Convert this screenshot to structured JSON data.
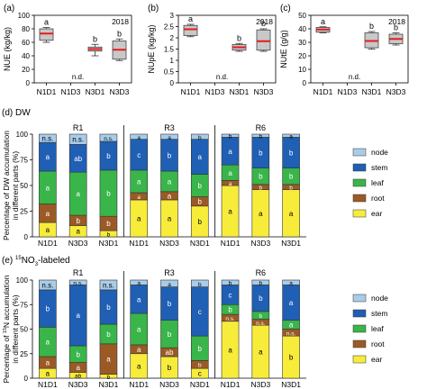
{
  "top_panels": [
    {
      "label": "(a)",
      "year": "2018",
      "ylabel": "NUE (kg/kg)",
      "yticks": [
        "0",
        "20",
        "40",
        "60",
        "80",
        "100"
      ],
      "ylim": [
        0,
        100
      ],
      "categories": [
        "N1D1",
        "N1D3",
        "N3D1",
        "N3D3"
      ],
      "nd_text": "n.d.",
      "boxes": [
        {
          "cat": "N1D1",
          "min": 60,
          "q1": 63,
          "median": 73,
          "q3": 80,
          "max": 82,
          "letter": "a"
        },
        {
          "cat": "N3D1",
          "min": 40,
          "q1": 47,
          "median": 50,
          "q3": 53,
          "max": 57,
          "letter": "b"
        },
        {
          "cat": "N3D3",
          "min": 33,
          "q1": 35,
          "median": 49,
          "q3": 62,
          "max": 65,
          "letter": "b"
        }
      ]
    },
    {
      "label": "(b)",
      "year": "2018",
      "ylabel": "NUpE (kg/kg)",
      "yticks": [
        "0",
        "0.5",
        "1",
        "1.5",
        "2",
        "2.5",
        "3"
      ],
      "ylim": [
        0,
        3
      ],
      "categories": [
        "N1D1",
        "N1D3",
        "N3D1",
        "N3D3"
      ],
      "nd_text": "n.d.",
      "boxes": [
        {
          "cat": "N1D1",
          "min": 2.05,
          "q1": 2.1,
          "median": 2.38,
          "q3": 2.55,
          "max": 2.6,
          "letter": "a"
        },
        {
          "cat": "N3D1",
          "min": 1.4,
          "q1": 1.45,
          "median": 1.58,
          "q3": 1.7,
          "max": 1.75,
          "letter": "b"
        },
        {
          "cat": "N3D3",
          "min": 1.4,
          "q1": 1.45,
          "median": 1.85,
          "q3": 2.35,
          "max": 2.4,
          "letter": "b"
        }
      ]
    },
    {
      "label": "(c)",
      "year": "2018",
      "ylabel": "NUtE (g/g)",
      "yticks": [
        "0",
        "10",
        "20",
        "30",
        "40",
        "50"
      ],
      "ylim": [
        0,
        50
      ],
      "categories": [
        "N1D1",
        "N1D3",
        "N3D1",
        "N3D3"
      ],
      "nd_text": "n.d.",
      "boxes": [
        {
          "cat": "N1D1",
          "min": 37,
          "q1": 37.5,
          "median": 39.5,
          "q3": 41,
          "max": 41.5,
          "letter": "a"
        },
        {
          "cat": "N3D1",
          "min": 25,
          "q1": 26,
          "median": 31,
          "q3": 37,
          "max": 38,
          "letter": "b"
        },
        {
          "cat": "N3D3",
          "min": 28,
          "q1": 29,
          "median": 32.5,
          "q3": 36,
          "max": 37,
          "letter": "b"
        }
      ]
    }
  ],
  "stack_order": [
    "ear",
    "root",
    "leaf",
    "stem",
    "node"
  ],
  "colors": {
    "ear": "#f7ec3a",
    "root": "#9b5a25",
    "leaf": "#39b54a",
    "stem": "#1f5fb4",
    "node": "#a9cce8"
  },
  "legend": [
    "node",
    "stem",
    "leaf",
    "root",
    "ear"
  ],
  "bar_panels": [
    {
      "label": "(d) DW",
      "ylabel": "Percentage of DW accumulation in different parts (%)",
      "ylabel_lines": [
        "Percentage of DW accumulation",
        "in different parts (%)"
      ],
      "yticks": [
        "0",
        "25",
        "50",
        "75",
        "100"
      ],
      "stages": [
        {
          "name": "R1",
          "bars": [
            {
              "cat": "N1D1",
              "values": {
                "ear": 14,
                "root": 18,
                "leaf": 32,
                "stem": 28,
                "node": 8
              },
              "letters": {
                "ear": "a",
                "root": "a",
                "leaf": "a",
                "stem": "a",
                "node": "n.s."
              }
            },
            {
              "cat": "N3D3",
              "values": {
                "ear": 11,
                "root": 10,
                "leaf": 42,
                "stem": 27,
                "node": 10
              },
              "letters": {
                "ear": "a",
                "root": "b",
                "leaf": "a",
                "stem": "ab",
                "node": "n.s."
              }
            },
            {
              "cat": "N3D1",
              "values": {
                "ear": 6,
                "root": 14,
                "leaf": 45,
                "stem": 28,
                "node": 7
              },
              "letters": {
                "ear": "b",
                "root": "b",
                "leaf": "b",
                "stem": "b",
                "node": "n.s."
              }
            }
          ]
        },
        {
          "name": "R3",
          "bars": [
            {
              "cat": "N1D1",
              "values": {
                "ear": 36,
                "root": 7,
                "leaf": 22,
                "stem": 30,
                "node": 5
              },
              "letters": {
                "ear": "a",
                "root": "a",
                "leaf": "a",
                "stem": "c",
                "node": "a"
              }
            },
            {
              "cat": "N3D3",
              "values": {
                "ear": 36,
                "root": 8,
                "leaf": 20,
                "stem": 31,
                "node": 5
              },
              "letters": {
                "ear": "a",
                "root": "a",
                "leaf": "a",
                "stem": "b",
                "node": "a"
              }
            },
            {
              "cat": "N3D1",
              "values": {
                "ear": 30,
                "root": 9,
                "leaf": 22,
                "stem": 34,
                "node": 5
              },
              "letters": {
                "ear": "b",
                "root": "b",
                "leaf": "b",
                "stem": "a",
                "node": "b"
              }
            }
          ]
        },
        {
          "name": "R6",
          "bars": [
            {
              "cat": "N1D1",
              "values": {
                "ear": 50,
                "root": 5,
                "leaf": 15,
                "stem": 27,
                "node": 3
              },
              "letters": {
                "ear": "a",
                "root": "a",
                "leaf": "a",
                "stem": "a",
                "node": "b"
              }
            },
            {
              "cat": "N3D3",
              "values": {
                "ear": 46,
                "root": 5,
                "leaf": 16,
                "stem": 30,
                "node": 3
              },
              "letters": {
                "ear": "a",
                "root": "b",
                "leaf": "b",
                "stem": "b",
                "node": "b"
              }
            },
            {
              "cat": "N3D1",
              "values": {
                "ear": 46,
                "root": 5,
                "leaf": 16,
                "stem": 30,
                "node": 3
              },
              "letters": {
                "ear": "a",
                "root": "b",
                "leaf": "b",
                "stem": "b",
                "node": "a"
              }
            }
          ]
        }
      ]
    },
    {
      "label_prefix": "(e)",
      "label_sup": "15",
      "label_main": "NO",
      "label_sub": "3",
      "label_suffix": "-labeled",
      "ylabel_lines_prefix": "Percentage of ",
      "ylabel_sup": "15",
      "ylabel_line1_suffix": "N accumulation",
      "ylabel_line2": "in different parts (%)",
      "yticks": [
        "0",
        "25",
        "50",
        "75",
        "100"
      ],
      "stages": [
        {
          "name": "R1",
          "bars": [
            {
              "cat": "N1D1",
              "values": {
                "ear": 10,
                "root": 12,
                "leaf": 30,
                "stem": 38,
                "node": 10
              },
              "letters": {
                "ear": "a",
                "root": "a",
                "leaf": "a",
                "stem": "b",
                "node": "n.s."
              }
            },
            {
              "cat": "N3D3",
              "values": {
                "ear": 6,
                "root": 10,
                "leaf": 17,
                "stem": 62,
                "node": 5
              },
              "letters": {
                "ear": "ab",
                "root": "a",
                "leaf": "b",
                "stem": "a",
                "node": "n.s."
              }
            },
            {
              "cat": "N3D1",
              "values": {
                "ear": 4,
                "root": 31,
                "leaf": 20,
                "stem": 35,
                "node": 10
              },
              "letters": {
                "ear": "b",
                "root": "a",
                "leaf": "b",
                "stem": "b",
                "node": "n.s."
              }
            }
          ]
        },
        {
          "name": "R3",
          "bars": [
            {
              "cat": "N1D1",
              "values": {
                "ear": 25,
                "root": 9,
                "leaf": 32,
                "stem": 29,
                "node": 5
              },
              "letters": {
                "ear": "a",
                "root": "a",
                "leaf": "a",
                "stem": "a",
                "node": "a"
              }
            },
            {
              "cat": "N3D3",
              "values": {
                "ear": 22,
                "root": 9,
                "leaf": 28,
                "stem": 34,
                "node": 7
              },
              "letters": {
                "ear": "b",
                "root": "ab",
                "leaf": "b",
                "stem": "b",
                "node": "a"
              }
            },
            {
              "cat": "N3D1",
              "values": {
                "ear": 10,
                "root": 8,
                "leaf": 25,
                "stem": 50,
                "node": 7
              },
              "letters": {
                "ear": "c",
                "root": "b",
                "leaf": "b",
                "stem": "c",
                "node": "b"
              }
            }
          ]
        },
        {
          "name": "R6",
          "bars": [
            {
              "cat": "N1D1",
              "values": {
                "ear": 58,
                "root": 7,
                "leaf": 10,
                "stem": 20,
                "node": 5
              },
              "letters": {
                "ear": "a",
                "root": "n.s.",
                "leaf": "b",
                "stem": "c",
                "node": "b"
              }
            },
            {
              "cat": "N3D3",
              "values": {
                "ear": 54,
                "root": 6,
                "leaf": 8,
                "stem": 27,
                "node": 5
              },
              "letters": {
                "ear": "a",
                "root": "n.s.",
                "leaf": "b",
                "stem": "b",
                "node": "b"
              }
            },
            {
              "cat": "N3D1",
              "values": {
                "ear": 43,
                "root": 7,
                "leaf": 9,
                "stem": 36,
                "node": 5
              },
              "letters": {
                "ear": "b",
                "root": "n.s.",
                "leaf": "a",
                "stem": "a",
                "node": "a"
              }
            }
          ]
        }
      ]
    }
  ],
  "chart_data": [
    {
      "type": "box",
      "title": "(a)",
      "ylabel": "NUE (kg/kg)",
      "ylim": [
        0,
        100
      ],
      "categories": [
        "N1D1",
        "N1D3",
        "N3D1",
        "N3D3"
      ],
      "series": [
        {
          "values": [
            73,
            null,
            50,
            49
          ]
        }
      ]
    },
    {
      "type": "box",
      "title": "(b)",
      "ylabel": "NUpE (kg/kg)",
      "ylim": [
        0,
        3
      ],
      "categories": [
        "N1D1",
        "N1D3",
        "N3D1",
        "N3D3"
      ],
      "series": [
        {
          "values": [
            2.38,
            null,
            1.58,
            1.85
          ]
        }
      ]
    },
    {
      "type": "box",
      "title": "(c)",
      "ylabel": "NUtE (g/g)",
      "ylim": [
        0,
        50
      ],
      "categories": [
        "N1D1",
        "N1D3",
        "N3D1",
        "N3D3"
      ],
      "series": [
        {
          "values": [
            39.5,
            null,
            31,
            32.5
          ]
        }
      ]
    },
    {
      "type": "bar",
      "stacked": true,
      "title": "(d) DW",
      "ylim": [
        0,
        100
      ],
      "categories": [
        "R1 N1D1",
        "R1 N3D3",
        "R1 N3D1",
        "R3 N1D1",
        "R3 N3D3",
        "R3 N3D1",
        "R6 N1D1",
        "R6 N3D3",
        "R6 N3D1"
      ],
      "series": [
        {
          "name": "ear",
          "values": [
            14,
            11,
            6,
            36,
            36,
            30,
            50,
            46,
            46
          ]
        },
        {
          "name": "root",
          "values": [
            18,
            10,
            14,
            7,
            8,
            9,
            5,
            5,
            5
          ]
        },
        {
          "name": "leaf",
          "values": [
            32,
            42,
            45,
            22,
            20,
            22,
            15,
            16,
            16
          ]
        },
        {
          "name": "stem",
          "values": [
            28,
            27,
            28,
            30,
            31,
            34,
            27,
            30,
            30
          ]
        },
        {
          "name": "node",
          "values": [
            8,
            10,
            7,
            5,
            5,
            5,
            3,
            3,
            3
          ]
        }
      ]
    },
    {
      "type": "bar",
      "stacked": true,
      "ylim": [
        0,
        100
      ],
      "categories": [
        "R1 N1D1",
        "R1 N3D3",
        "R1 N3D1",
        "R3 N1D1",
        "R3 N3D3",
        "R3 N3D1",
        "R6 N1D1",
        "R6 N3D3",
        "R6 N3D1"
      ],
      "series": [
        {
          "name": "ear",
          "values": [
            10,
            6,
            4,
            25,
            22,
            10,
            58,
            54,
            43
          ]
        },
        {
          "name": "root",
          "values": [
            12,
            10,
            31,
            9,
            9,
            8,
            7,
            6,
            7
          ]
        },
        {
          "name": "leaf",
          "values": [
            30,
            17,
            20,
            32,
            28,
            25,
            10,
            8,
            9
          ]
        },
        {
          "name": "stem",
          "values": [
            38,
            62,
            35,
            29,
            34,
            50,
            20,
            27,
            36
          ]
        },
        {
          "name": "node",
          "values": [
            10,
            5,
            10,
            5,
            7,
            7,
            5,
            5,
            5
          ]
        }
      ]
    }
  ]
}
